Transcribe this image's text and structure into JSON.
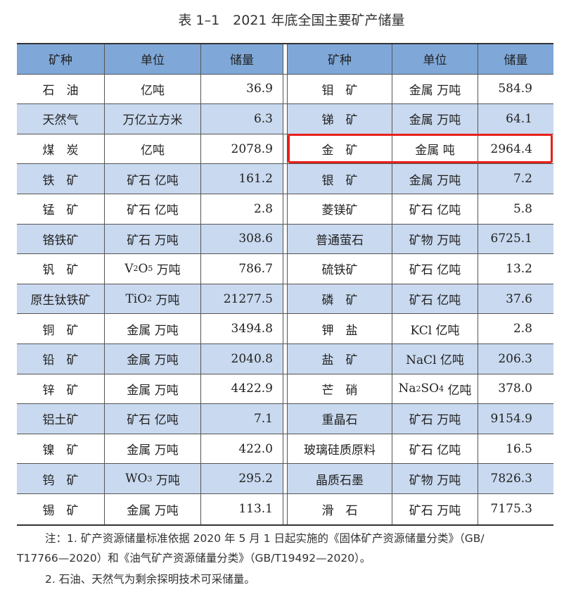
{
  "title": "表 1–1　2021 年底全国主要矿产储量",
  "headers": [
    "矿种",
    "单位",
    "储量",
    "矿种",
    "单位",
    "储量"
  ],
  "highlight_color": "#e8201c",
  "rows": [
    [
      {
        "n": "石　油",
        "u": [
          {
            "t": "亿吨"
          }
        ],
        "v": "36.9"
      },
      {
        "n": "钼　矿",
        "u": [
          {
            "t": "金属 万吨"
          }
        ],
        "v": "584.9"
      }
    ],
    [
      {
        "n": "天然气",
        "u": [
          {
            "t": "万亿立方米"
          }
        ],
        "v": "6.3"
      },
      {
        "n": "锑　矿",
        "u": [
          {
            "t": "金属 万吨"
          }
        ],
        "v": "64.1"
      }
    ],
    [
      {
        "n": "煤　炭",
        "u": [
          {
            "t": "亿吨"
          }
        ],
        "v": "2078.9"
      },
      {
        "n": "金　矿",
        "u": [
          {
            "t": "金属 吨"
          }
        ],
        "v": "2964.4"
      }
    ],
    [
      {
        "n": "铁　矿",
        "u": [
          {
            "t": "矿石 亿吨"
          }
        ],
        "v": "161.2"
      },
      {
        "n": "银　矿",
        "u": [
          {
            "t": "金属 万吨"
          }
        ],
        "v": "7.2"
      }
    ],
    [
      {
        "n": "锰　矿",
        "u": [
          {
            "t": "矿石 亿吨"
          }
        ],
        "v": "2.8"
      },
      {
        "n": "菱镁矿",
        "u": [
          {
            "t": "矿石 亿吨"
          }
        ],
        "v": "5.8"
      }
    ],
    [
      {
        "n": "铬铁矿",
        "u": [
          {
            "t": "矿石 万吨"
          }
        ],
        "v": "308.6"
      },
      {
        "n": "普通萤石",
        "u": [
          {
            "t": "矿物 万吨"
          }
        ],
        "v": "6725.1"
      }
    ],
    [
      {
        "n": "钒　矿",
        "u": [
          {
            "t": "V"
          },
          {
            "t": "2",
            "sub": true
          },
          {
            "t": "O"
          },
          {
            "t": "5",
            "sub": true
          },
          {
            "t": " 万吨"
          }
        ],
        "v": "786.7"
      },
      {
        "n": "硫铁矿",
        "u": [
          {
            "t": "矿石 亿吨"
          }
        ],
        "v": "13.2"
      }
    ],
    [
      {
        "n": "原生钛铁矿",
        "u": [
          {
            "t": "TiO"
          },
          {
            "t": "2",
            "sub": true
          },
          {
            "t": " 万吨"
          }
        ],
        "v": "21277.5"
      },
      {
        "n": "磷　矿",
        "u": [
          {
            "t": "矿石 亿吨"
          }
        ],
        "v": "37.6"
      }
    ],
    [
      {
        "n": "铜　矿",
        "u": [
          {
            "t": "金属 万吨"
          }
        ],
        "v": "3494.8"
      },
      {
        "n": "钾　盐",
        "u": [
          {
            "t": "KCl 亿吨"
          }
        ],
        "v": "2.8"
      }
    ],
    [
      {
        "n": "铅　矿",
        "u": [
          {
            "t": "金属 万吨"
          }
        ],
        "v": "2040.8"
      },
      {
        "n": "盐　矿",
        "u": [
          {
            "t": "NaCl 亿吨"
          }
        ],
        "v": "206.3"
      }
    ],
    [
      {
        "n": "锌　矿",
        "u": [
          {
            "t": "金属 万吨"
          }
        ],
        "v": "4422.9"
      },
      {
        "n": "芒　硝",
        "u": [
          {
            "t": "Na"
          },
          {
            "t": "2",
            "sub": true
          },
          {
            "t": "SO"
          },
          {
            "t": "4",
            "sub": true
          },
          {
            "t": " 亿吨"
          }
        ],
        "v": "378.0"
      }
    ],
    [
      {
        "n": "铝土矿",
        "u": [
          {
            "t": "矿石 亿吨"
          }
        ],
        "v": "7.1"
      },
      {
        "n": "重晶石",
        "u": [
          {
            "t": "矿石 万吨"
          }
        ],
        "v": "9154.9"
      }
    ],
    [
      {
        "n": "镍　矿",
        "u": [
          {
            "t": "金属 万吨"
          }
        ],
        "v": "422.0"
      },
      {
        "n": "玻璃硅质原料",
        "u": [
          {
            "t": "矿石 亿吨"
          }
        ],
        "v": "16.5"
      }
    ],
    [
      {
        "n": "钨　矿",
        "u": [
          {
            "t": "WO"
          },
          {
            "t": "3",
            "sub": true
          },
          {
            "t": " 万吨"
          }
        ],
        "v": "295.2"
      },
      {
        "n": "晶质石墨",
        "u": [
          {
            "t": "矿物 万吨"
          }
        ],
        "v": "7826.3"
      }
    ],
    [
      {
        "n": "锡　矿",
        "u": [
          {
            "t": "金属 万吨"
          }
        ],
        "v": "113.1"
      },
      {
        "n": "滑　石",
        "u": [
          {
            "t": "矿石 万吨"
          }
        ],
        "v": "7175.3"
      }
    ]
  ],
  "notes": {
    "line1": "注：1. 矿产资源储量标准依据 2020 年 5 月 1 日起实施的《固体矿产资源储量分类》（GB/",
    "line2": "T17766—2020）和《油气矿产资源储量分类》（GB/T19492—2020）。",
    "line3": "2. 石油、天然气为剩余探明技术可采储量。"
  }
}
